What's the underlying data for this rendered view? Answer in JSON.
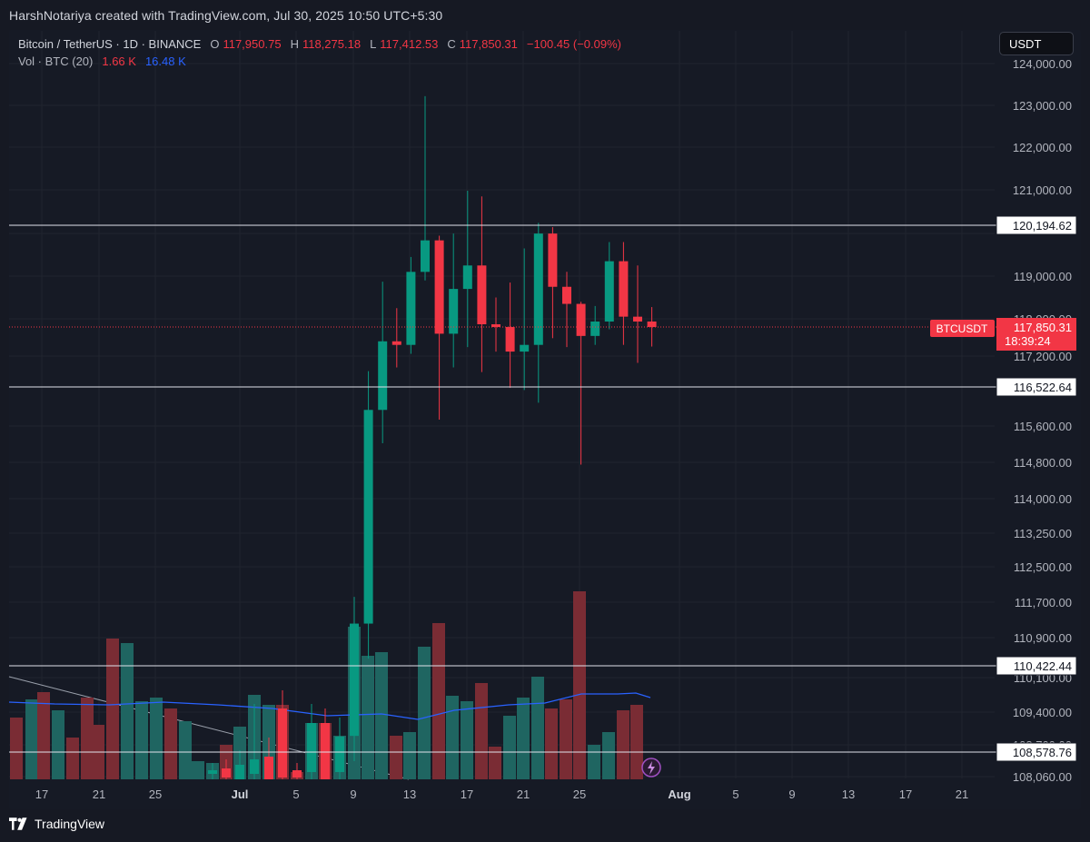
{
  "attribution": "HarshNotariya created with TradingView.com, Jul 30, 2025 10:50 UTC+5:30",
  "legend": {
    "symbol": "Bitcoin / TetherUS · 1D · BINANCE",
    "o_label": "O",
    "o_value": "117,950.75",
    "h_label": "H",
    "h_value": "118,275.18",
    "l_label": "L",
    "l_value": "117,412.53",
    "c_label": "C",
    "c_value": "117,850.31",
    "change": "−100.45 (−0.09%)",
    "vol_label": "Vol · BTC (20)",
    "vol_value": "1.66 K",
    "vol_ma": "16.48 K"
  },
  "currency_button": "USDT",
  "footer_brand": "TradingView",
  "colors": {
    "up": "#089981",
    "down": "#f23645",
    "vol_up": "#1f6561",
    "vol_down": "#7a2c34",
    "ma": "#2962ff",
    "background": "#161a25"
  },
  "chart_data": {
    "type": "candlestick",
    "title": "Bitcoin / TetherUS · 1D · BINANCE",
    "price_axis_ticks": [
      "124,000.00",
      "123,000.00",
      "122,000.00",
      "121,000.00",
      "119,000.00",
      "118,000.00",
      "117,200.00",
      "115,600.00",
      "114,800.00",
      "114,000.00",
      "113,250.00",
      "112,500.00",
      "111,700.00",
      "110,900.00",
      "110,100.00",
      "109,400.00",
      "108,700.00",
      "108,060.00"
    ],
    "time_axis_ticks": [
      "17",
      "21",
      "25",
      "Jul",
      "5",
      "9",
      "13",
      "17",
      "21",
      "25",
      "Aug",
      "5",
      "9",
      "13",
      "17",
      "21"
    ],
    "horizontal_levels": [
      {
        "price": 120194.62,
        "label": "120,194.62"
      },
      {
        "price": 116522.64,
        "label": "116,522.64"
      },
      {
        "price": 110422.44,
        "label": "110,422.44"
      },
      {
        "price": 108578.76,
        "label": "108,578.76"
      }
    ],
    "last_price": {
      "symbol": "BTCUSDT",
      "price": 117850.31,
      "label": "117,850.31",
      "countdown": "18:39:24"
    },
    "candles": [
      {
        "date": "Jul 9",
        "o": 108930,
        "h": 111900,
        "l": 108390,
        "c": 111330
      },
      {
        "date": "Jul 10",
        "o": 111330,
        "h": 116870,
        "l": 110580,
        "c": 115980
      },
      {
        "date": "Jul 11",
        "o": 115980,
        "h": 118870,
        "l": 115220,
        "c": 117530
      },
      {
        "date": "Jul 12",
        "o": 117530,
        "h": 118250,
        "l": 116950,
        "c": 117450
      },
      {
        "date": "Jul 13",
        "o": 117450,
        "h": 119450,
        "l": 117250,
        "c": 119100
      },
      {
        "date": "Jul 14",
        "o": 119100,
        "h": 123220,
        "l": 118900,
        "c": 119840
      },
      {
        "date": "Jul 15",
        "o": 119840,
        "h": 119950,
        "l": 115750,
        "c": 117700
      },
      {
        "date": "Jul 16",
        "o": 117700,
        "h": 120000,
        "l": 116950,
        "c": 118700
      },
      {
        "date": "Jul 17",
        "o": 118700,
        "h": 120980,
        "l": 117400,
        "c": 119250
      },
      {
        "date": "Jul 18",
        "o": 119250,
        "h": 120850,
        "l": 116850,
        "c": 117900
      },
      {
        "date": "Jul 19",
        "o": 117900,
        "h": 118500,
        "l": 117300,
        "c": 117850
      },
      {
        "date": "Jul 20",
        "o": 117850,
        "h": 118850,
        "l": 116500,
        "c": 117300
      },
      {
        "date": "Jul 21",
        "o": 117300,
        "h": 119650,
        "l": 116450,
        "c": 117450
      },
      {
        "date": "Jul 22",
        "o": 117450,
        "h": 120250,
        "l": 116150,
        "c": 120000
      },
      {
        "date": "Jul 23",
        "o": 120000,
        "h": 120150,
        "l": 117600,
        "c": 118750
      },
      {
        "date": "Jul 24",
        "o": 118750,
        "h": 119100,
        "l": 117400,
        "c": 118350
      },
      {
        "date": "Jul 25",
        "o": 118350,
        "h": 118400,
        "l": 114750,
        "c": 117650
      },
      {
        "date": "Jul 26",
        "o": 117650,
        "h": 118300,
        "l": 117450,
        "c": 117950
      },
      {
        "date": "Jul 27",
        "o": 117950,
        "h": 119800,
        "l": 117800,
        "c": 119350
      },
      {
        "date": "Jul 28",
        "o": 119350,
        "h": 119800,
        "l": 117450,
        "c": 118050
      },
      {
        "date": "Jul 29",
        "o": 118050,
        "h": 119250,
        "l": 117050,
        "c": 117950
      },
      {
        "date": "Jul 30",
        "o": 117950.75,
        "h": 118275.18,
        "l": 117412.53,
        "c": 117850.31
      }
    ],
    "volume_candles_up": [
      "up",
      "dn",
      "up",
      "dn",
      "dn",
      "up",
      "up",
      "dn",
      "dn",
      "up",
      "dn",
      "up",
      "dn",
      "up",
      "up",
      "up",
      "dn",
      "up",
      "dn",
      "up",
      "dn",
      "up",
      "up",
      "up",
      "up",
      "dn",
      "dn",
      "up",
      "up",
      "up",
      "dn",
      "up",
      "up",
      "up",
      "up",
      "dn",
      "up",
      "dn",
      "dn",
      "up",
      "dn",
      "up",
      "up",
      "dn",
      "dn",
      "up",
      "up",
      "dn",
      "dn"
    ]
  }
}
